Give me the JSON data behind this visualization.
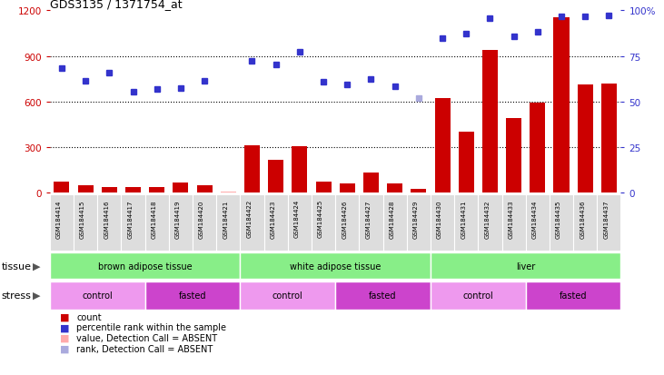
{
  "title": "GDS3135 / 1371754_at",
  "samples": [
    "GSM184414",
    "GSM184415",
    "GSM184416",
    "GSM184417",
    "GSM184418",
    "GSM184419",
    "GSM184420",
    "GSM184421",
    "GSM184422",
    "GSM184423",
    "GSM184424",
    "GSM184425",
    "GSM184426",
    "GSM184427",
    "GSM184428",
    "GSM184429",
    "GSM184430",
    "GSM184431",
    "GSM184432",
    "GSM184433",
    "GSM184434",
    "GSM184435",
    "GSM184436",
    "GSM184437"
  ],
  "count_values": [
    75,
    50,
    40,
    35,
    35,
    65,
    50,
    10,
    315,
    215,
    305,
    75,
    60,
    130,
    60,
    25,
    620,
    400,
    940,
    490,
    590,
    1155,
    710,
    720
  ],
  "count_absent": [
    false,
    false,
    false,
    false,
    false,
    false,
    false,
    true,
    false,
    false,
    false,
    false,
    false,
    false,
    false,
    false,
    false,
    false,
    false,
    false,
    false,
    false,
    false,
    false
  ],
  "rank_values": [
    820,
    735,
    790,
    665,
    680,
    690,
    735,
    null,
    870,
    845,
    930,
    730,
    710,
    750,
    700,
    625,
    1020,
    1050,
    1150,
    1030,
    1060,
    1160,
    1160,
    1165
  ],
  "rank_absent": [
    false,
    false,
    false,
    false,
    false,
    false,
    false,
    false,
    false,
    false,
    false,
    false,
    false,
    false,
    false,
    true,
    false,
    false,
    false,
    false,
    false,
    false,
    false,
    false
  ],
  "ylim_left": [
    0,
    1200
  ],
  "ylim_right": [
    0,
    100
  ],
  "yticks_left": [
    0,
    300,
    600,
    900,
    1200
  ],
  "yticks_right": [
    0,
    25,
    50,
    75,
    100
  ],
  "bar_color": "#cc0000",
  "bar_absent_color": "#ffaaaa",
  "dot_color": "#3333cc",
  "dot_absent_color": "#aaaadd",
  "tissue_color": "#88ee88",
  "control_color": "#ee99ee",
  "fasted_color": "#cc44cc",
  "tissue_groups": [
    {
      "label": "brown adipose tissue",
      "start": 0,
      "end": 7
    },
    {
      "label": "white adipose tissue",
      "start": 8,
      "end": 15
    },
    {
      "label": "liver",
      "start": 16,
      "end": 23
    }
  ],
  "stress_groups": [
    {
      "label": "control",
      "start": 0,
      "end": 3
    },
    {
      "label": "fasted",
      "start": 4,
      "end": 7
    },
    {
      "label": "control",
      "start": 8,
      "end": 11
    },
    {
      "label": "fasted",
      "start": 12,
      "end": 15
    },
    {
      "label": "control",
      "start": 16,
      "end": 19
    },
    {
      "label": "fasted",
      "start": 20,
      "end": 23
    }
  ],
  "legend_items": [
    {
      "label": "count",
      "color": "#cc0000"
    },
    {
      "label": "percentile rank within the sample",
      "color": "#3333cc"
    },
    {
      "label": "value, Detection Call = ABSENT",
      "color": "#ffaaaa"
    },
    {
      "label": "rank, Detection Call = ABSENT",
      "color": "#aaaadd"
    }
  ],
  "tissue_row_label": "tissue",
  "stress_row_label": "stress",
  "background_color": "#ffffff",
  "axis_color_left": "#cc0000",
  "axis_color_right": "#3333cc"
}
